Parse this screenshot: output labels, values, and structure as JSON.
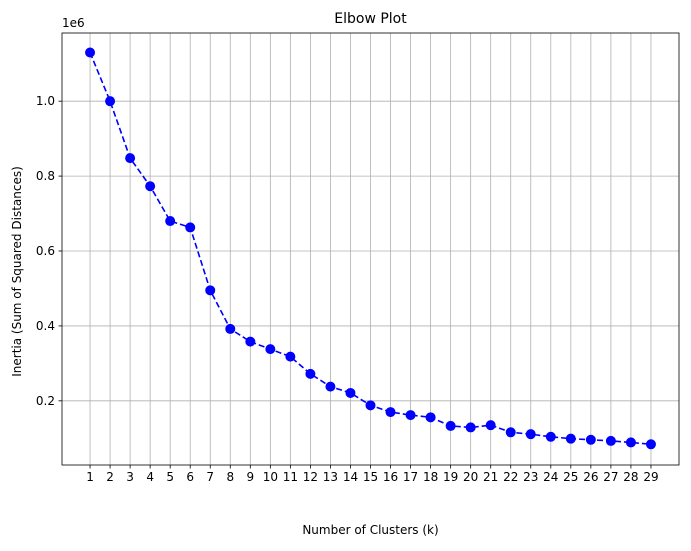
{
  "chart_data": {
    "type": "line",
    "title": "Elbow Plot",
    "xlabel": "Number of Clusters (k)",
    "ylabel": "Inertia (Sum of Squared Distances)",
    "y_scale_label": "1e6",
    "x": [
      1,
      2,
      3,
      4,
      5,
      6,
      7,
      8,
      9,
      10,
      11,
      12,
      13,
      14,
      15,
      16,
      17,
      18,
      19,
      20,
      21,
      22,
      23,
      24,
      25,
      26,
      27,
      28,
      29
    ],
    "series": [
      {
        "values": [
          1130000,
          1000000,
          848000,
          773000,
          680000,
          663000,
          495000,
          392000,
          358000,
          338000,
          318000,
          272000,
          238000,
          221000,
          188000,
          170000,
          162000,
          156000,
          133000,
          129000,
          135000,
          116000,
          111000,
          104000,
          99000,
          96000,
          93000,
          89000,
          84000
        ],
        "color": "#0000ff",
        "line_style": "dashed",
        "marker": "circle"
      }
    ],
    "x_ticks": [
      "1",
      "2",
      "3",
      "4",
      "5",
      "6",
      "7",
      "8",
      "9",
      "10",
      "11",
      "12",
      "13",
      "14",
      "15",
      "16",
      "17",
      "18",
      "19",
      "20",
      "21",
      "22",
      "23",
      "24",
      "25",
      "26",
      "27",
      "28",
      "29"
    ],
    "y_ticks": [
      {
        "value": 200000,
        "label": "0.2"
      },
      {
        "value": 400000,
        "label": "0.4"
      },
      {
        "value": 600000,
        "label": "0.6"
      },
      {
        "value": 800000,
        "label": "0.8"
      },
      {
        "value": 1000000,
        "label": "1.0"
      }
    ],
    "xlim": [
      -0.4,
      30.4
    ],
    "ylim": [
      28700,
      1182000
    ],
    "grid": true,
    "grid_color": "#b0b0b0"
  }
}
